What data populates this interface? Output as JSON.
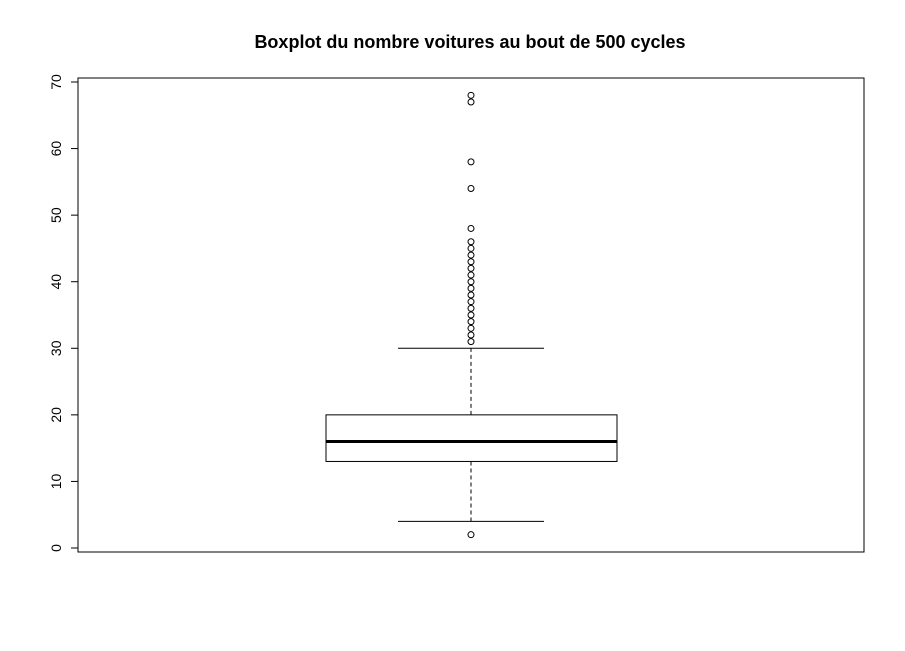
{
  "chart_data": {
    "type": "boxplot",
    "title": "Boxplot du nombre voitures au bout de 500 cycles",
    "xlabel": "",
    "ylabel": "",
    "ylim": [
      0,
      70
    ],
    "y_ticks": [
      0,
      10,
      20,
      30,
      40,
      50,
      60,
      70
    ],
    "y_tick_labels": [
      "0",
      "10",
      "20",
      "30",
      "40",
      "50",
      "60",
      "70"
    ],
    "grid": false,
    "box": {
      "lower_whisker": 4,
      "q1": 13,
      "median": 16,
      "q3": 20,
      "upper_whisker": 30
    },
    "outliers": [
      2,
      31,
      32,
      33,
      34,
      35,
      36,
      37,
      38,
      39,
      40,
      41,
      42,
      43,
      44,
      45,
      46,
      48,
      54,
      58,
      67,
      68
    ]
  }
}
